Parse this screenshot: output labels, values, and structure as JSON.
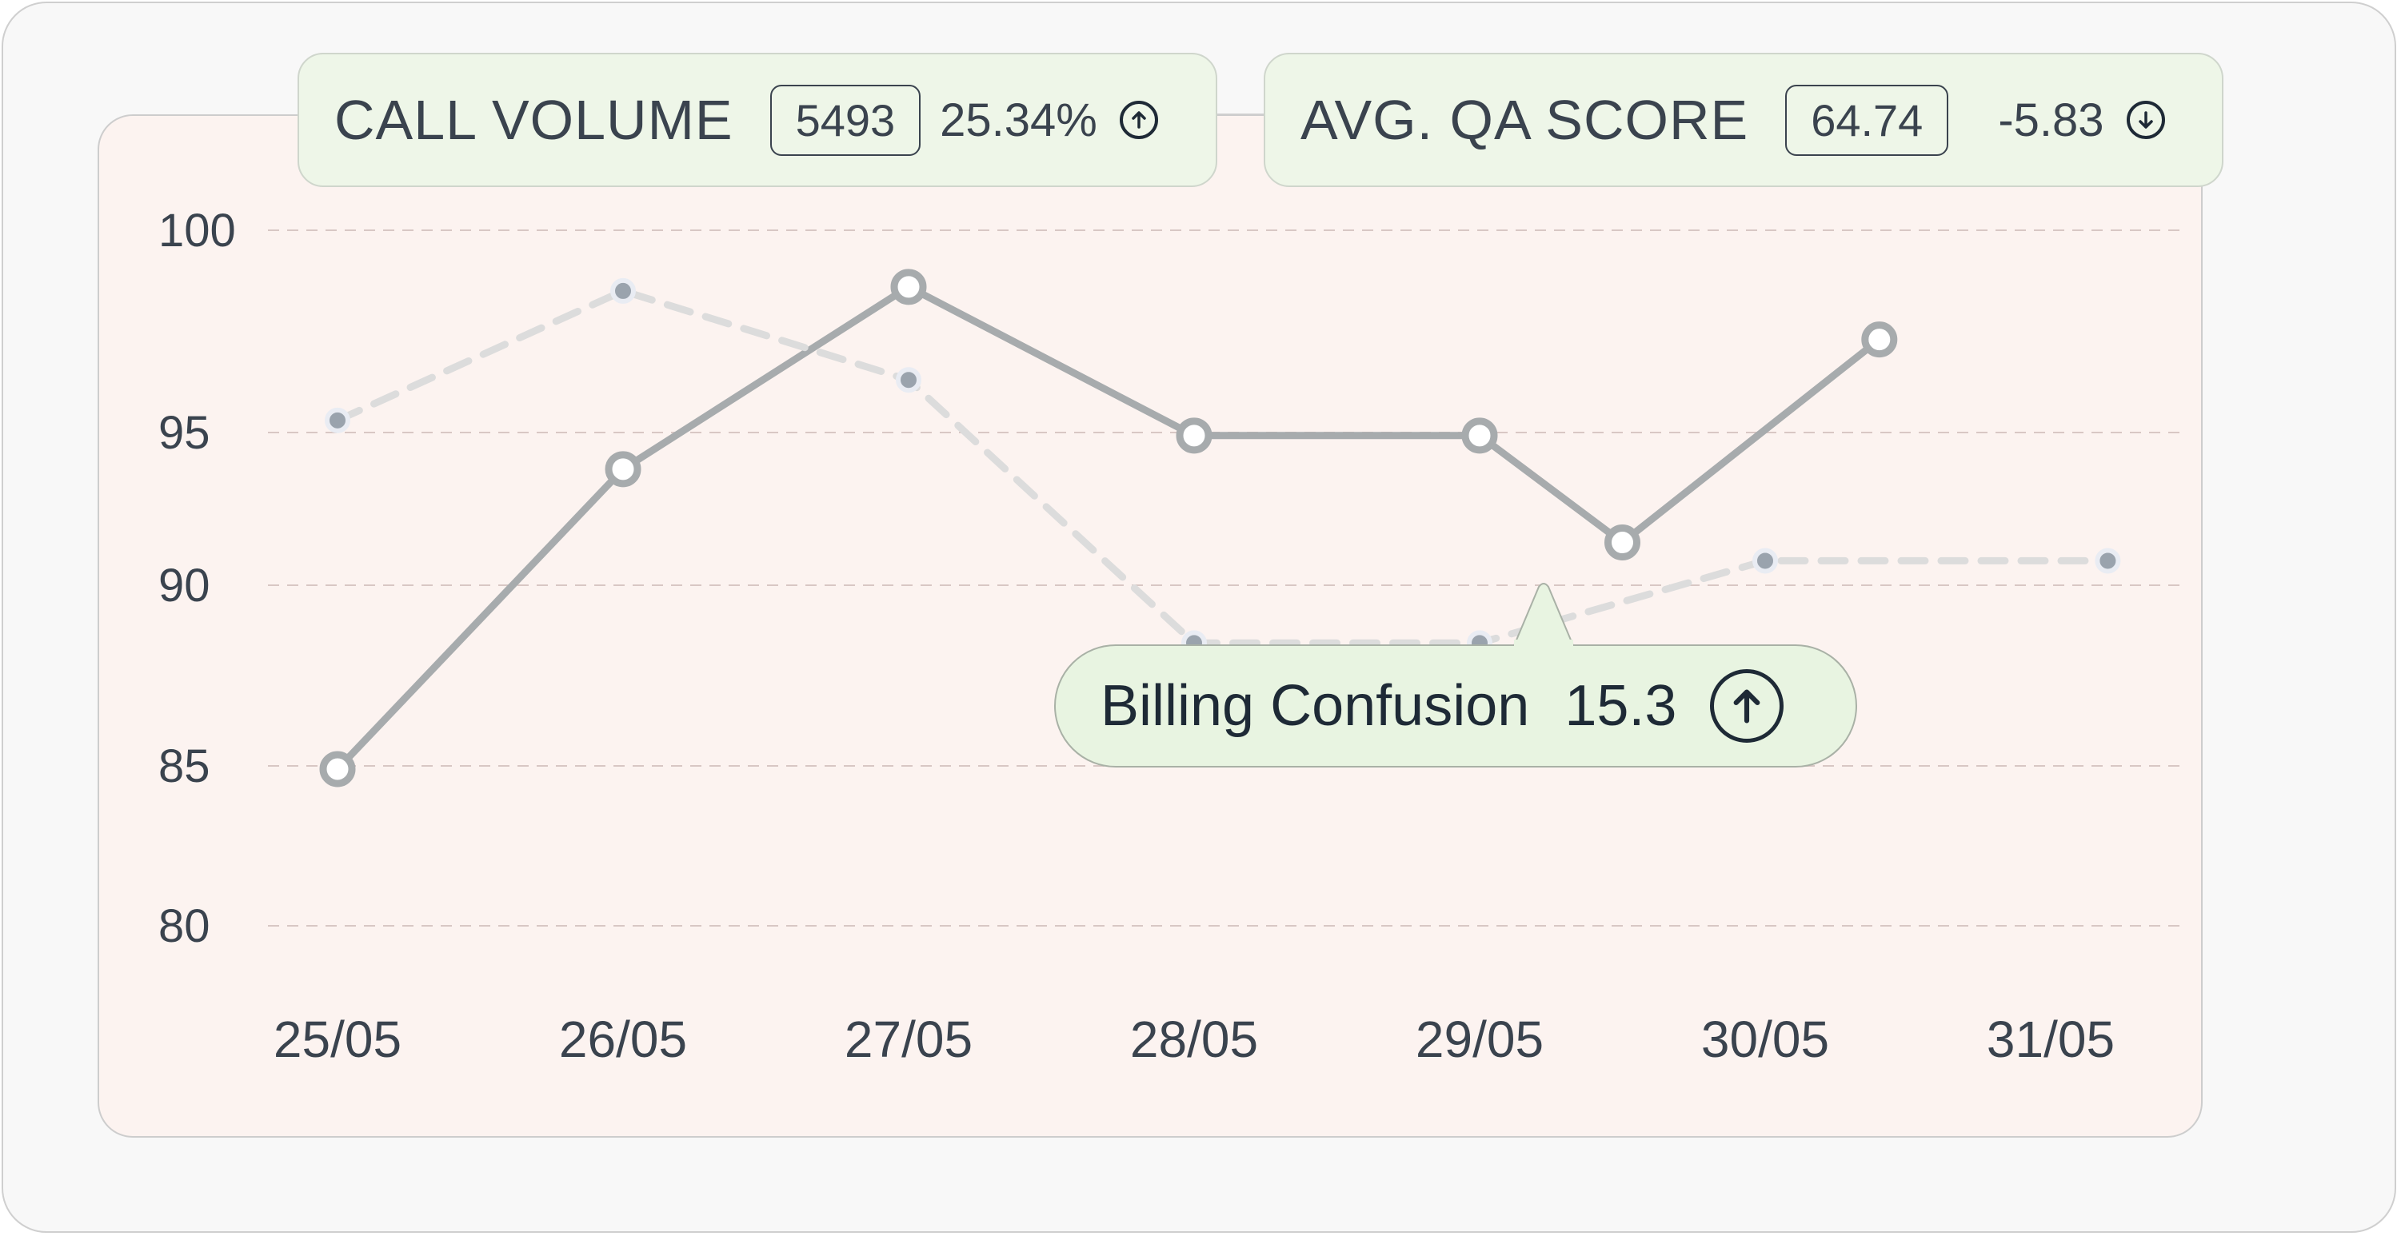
{
  "kpis": {
    "call_volume": {
      "label": "CALL VOLUME",
      "value": "5493",
      "change": "25.34%",
      "direction_icon": "arrow-up-circle-icon"
    },
    "qa_score": {
      "label": "AVG. QA SCORE",
      "value": "64.74",
      "change": "-5.83",
      "direction_icon": "arrow-down-circle-icon"
    }
  },
  "tooltip": {
    "label": "Billing Confusion",
    "value": "15.3",
    "icon": "arrow-up-circle-icon"
  },
  "chart_data": {
    "type": "line",
    "categories": [
      "25/05",
      "26/05",
      "27/05",
      "28/05",
      "29/05",
      "30/05",
      "31/05"
    ],
    "yticks": [
      80,
      85,
      90,
      95,
      100
    ],
    "ylim": [
      80,
      100
    ],
    "grid": true,
    "series": [
      {
        "style": "solid",
        "color": "#a7abad",
        "x": [
          "25/05",
          "26/05",
          "27/05",
          "28/05",
          "29/05",
          "29/05",
          "30/05"
        ],
        "x_offset": [
          0,
          0,
          0,
          0,
          0,
          0.5,
          0.4
        ],
        "values": [
          84.9,
          93.8,
          98.6,
          94.9,
          94.9,
          91.4,
          97.3
        ]
      },
      {
        "style": "dashed",
        "color": "#dcdcdc",
        "x": [
          "25/05",
          "26/05",
          "27/05",
          "28/05",
          "29/05",
          "30/05",
          "31/05"
        ],
        "x_offset": [
          0,
          0,
          0,
          0,
          0,
          0,
          0.2
        ],
        "values": [
          95.3,
          98.5,
          96.3,
          88.4,
          88.4,
          90.8,
          90.8
        ]
      }
    ],
    "colors": {
      "grid": "#d8c7c4",
      "axis_text": "#3a434e",
      "solid_line": "#a7abad",
      "dashed_line": "#dcdcdc",
      "dot_fill": "#9aa3ad"
    }
  }
}
